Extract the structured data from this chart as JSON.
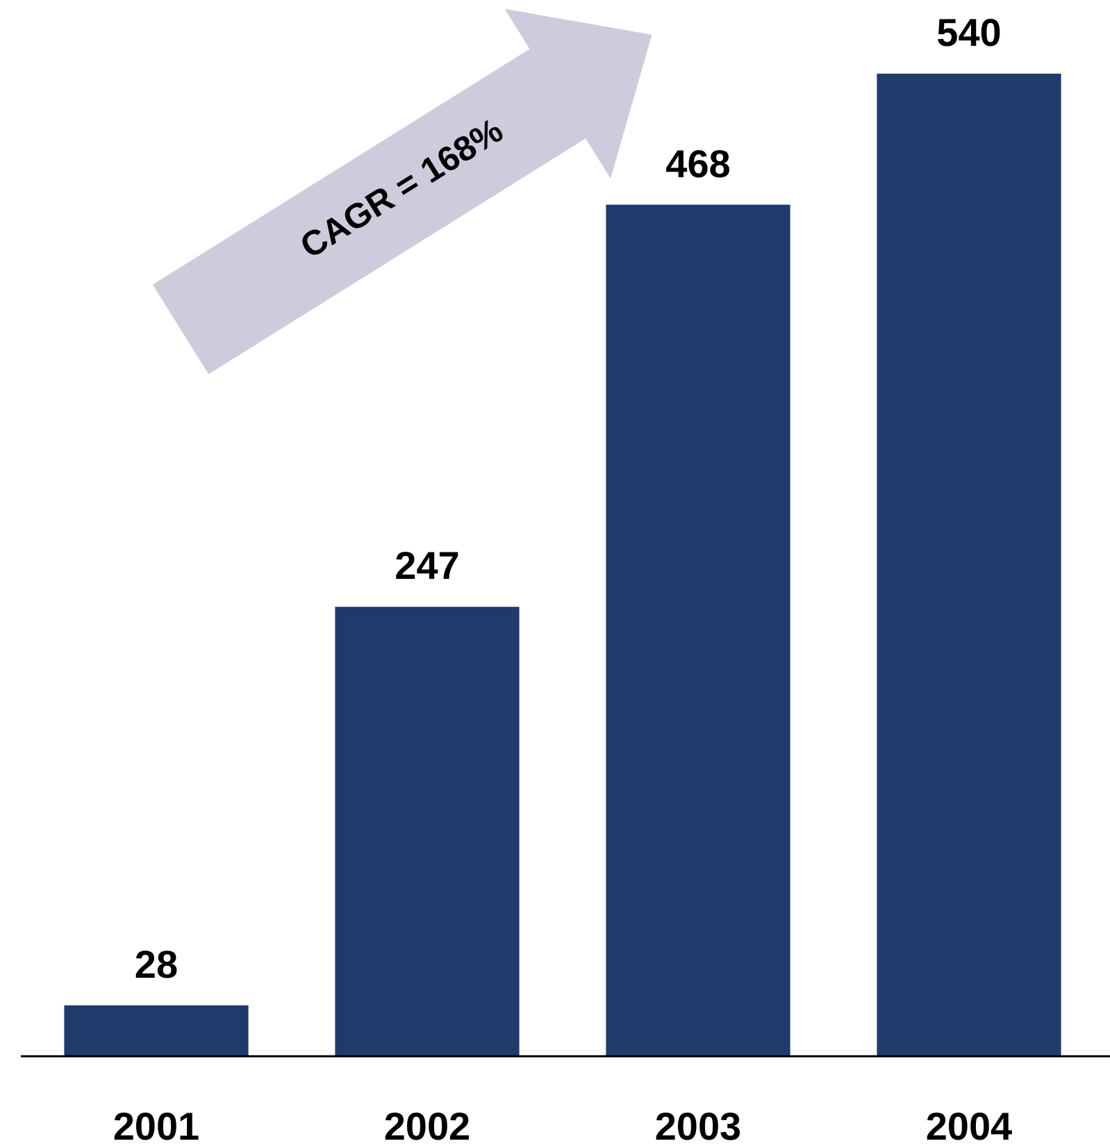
{
  "chart_data": {
    "type": "bar",
    "categories": [
      "2001",
      "2002",
      "2003",
      "2004"
    ],
    "values": [
      28,
      247,
      468,
      540
    ],
    "color": "#203a6b",
    "data_labels": true,
    "annotations": [
      "CAGR = 168%"
    ]
  }
}
